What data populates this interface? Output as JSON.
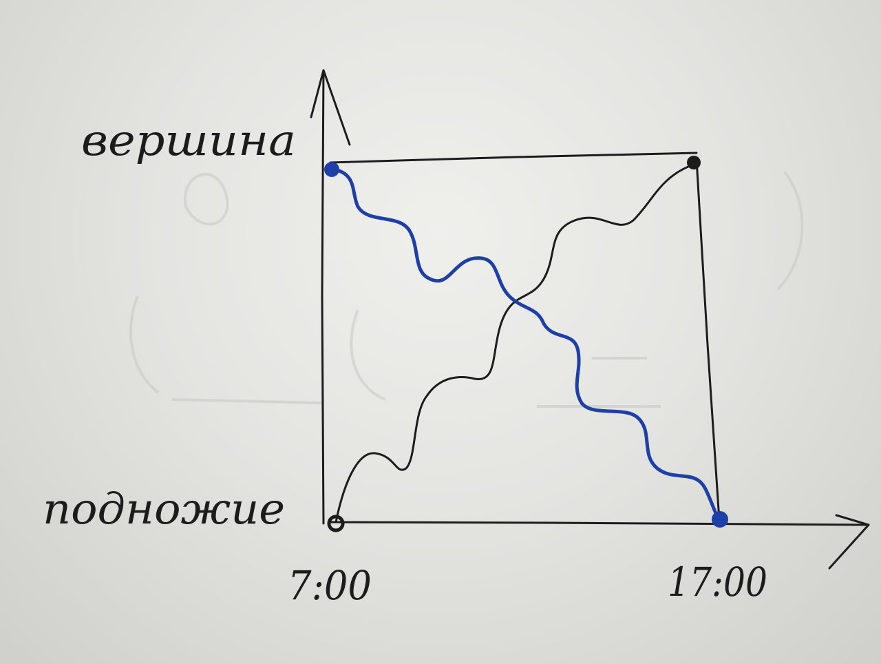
{
  "labels": {
    "top_level": "вершина",
    "bottom_level": "подножие",
    "time_start": "7:00",
    "time_end": "17:00"
  },
  "colors": {
    "ink": "#1c1c1c",
    "blue_ink": "#1f3fa8",
    "paper": "#e8e8e5"
  }
}
